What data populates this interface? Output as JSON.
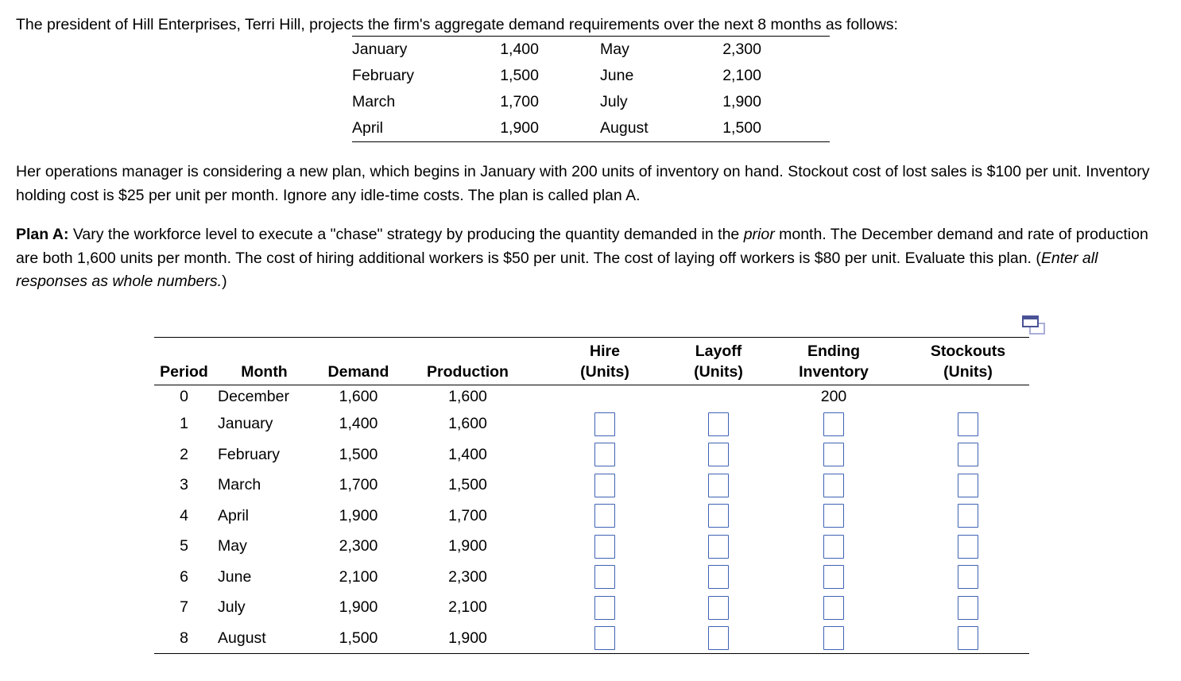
{
  "page": {
    "title": "The president of Hill Enterprises, Terri Hill, projects the firm's aggregate demand requirements over the next 8 months as follows:"
  },
  "demand_table": {
    "rows": [
      {
        "month1": "January",
        "value1": "1,400",
        "month2": "May",
        "value2": "2,300"
      },
      {
        "month1": "February",
        "value1": "1,500",
        "month2": "June",
        "value2": "2,100"
      },
      {
        "month1": "March",
        "value1": "1,700",
        "month2": "July",
        "value2": "1,900"
      },
      {
        "month1": "April",
        "value1": "1,900",
        "month2": "August",
        "value2": "1,500"
      }
    ]
  },
  "paragraphs": {
    "p1": "Her operations manager is considering a new plan, which begins in January with 200 units of inventory on hand. Stockout cost of lost sales is $100 per unit. Inventory holding cost is $25 per unit per month. Ignore any idle-time costs. The plan is called plan A.",
    "p2_bold": "Plan A:",
    "p2_seg1": " Vary the workforce level to execute a \"chase\" strategy by producing the quantity demanded in the ",
    "p2_italic1": "prior",
    "p2_seg2": " month. The December demand and rate of production are both 1,600 units per month. The cost of hiring additional workers is $50 per unit. The cost of laying off workers is $80 per unit. Evaluate this plan. (",
    "p2_italic2": "Enter all responses as whole numbers.",
    "p2_seg3": ")"
  },
  "plan_table": {
    "headers": [
      {
        "line1": "",
        "line2": "Period"
      },
      {
        "line1": "",
        "line2": "Month"
      },
      {
        "line1": "",
        "line2": "Demand"
      },
      {
        "line1": "",
        "line2": "Production"
      },
      {
        "line1": "Hire",
        "line2": "(Units)"
      },
      {
        "line1": "Layoff",
        "line2": "(Units)"
      },
      {
        "line1": "Ending",
        "line2": "Inventory"
      },
      {
        "line1": "Stockouts",
        "line2": "(Units)"
      }
    ],
    "rows": [
      {
        "period": "0",
        "month": "December",
        "demand": "1,600",
        "production": "1,600",
        "inputs": false,
        "hire": "",
        "layoff": "",
        "ending": "200",
        "stockouts": ""
      },
      {
        "period": "1",
        "month": "January",
        "demand": "1,400",
        "production": "1,600",
        "inputs": true
      },
      {
        "period": "2",
        "month": "February",
        "demand": "1,500",
        "production": "1,400",
        "inputs": true
      },
      {
        "period": "3",
        "month": "March",
        "demand": "1,700",
        "production": "1,500",
        "inputs": true
      },
      {
        "period": "4",
        "month": "April",
        "demand": "1,900",
        "production": "1,700",
        "inputs": true
      },
      {
        "period": "5",
        "month": "May",
        "demand": "2,300",
        "production": "1,900",
        "inputs": true
      },
      {
        "period": "6",
        "month": "June",
        "demand": "2,100",
        "production": "2,300",
        "inputs": true
      },
      {
        "period": "7",
        "month": "July",
        "demand": "1,900",
        "production": "2,100",
        "inputs": true
      },
      {
        "period": "8",
        "month": "August",
        "demand": "1,500",
        "production": "1,900",
        "inputs": true
      }
    ],
    "input_value": "",
    "ending_inventory_initial": "200"
  },
  "icons": {
    "popout": "popout-table-icon"
  },
  "colors": {
    "input_border": "#3E62B4",
    "icon_dark": "#4A5396",
    "icon_light": "#A9AFD6",
    "table_border": "#000000",
    "text": "#000000",
    "background": "#FFFFFF"
  }
}
